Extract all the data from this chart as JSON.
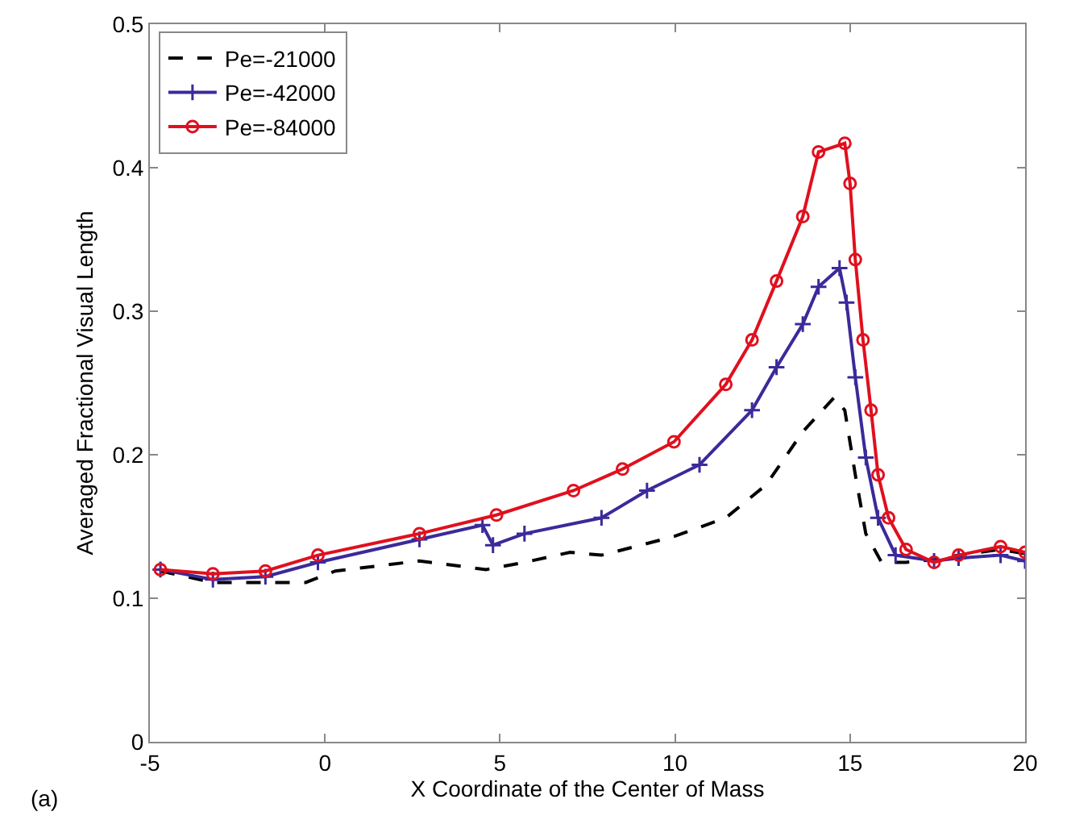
{
  "chart_data": {
    "type": "line",
    "xlabel": "X Coordinate of the Center of Mass",
    "ylabel": "Averaged Fractional Visual Length",
    "annotations": [
      "(a)"
    ],
    "xlim": [
      -5,
      20
    ],
    "xticks": [
      -5,
      0,
      5,
      10,
      15,
      20
    ],
    "ylim": [
      0,
      0.5
    ],
    "yticks": [
      0,
      0.1,
      0.2,
      0.3,
      0.4,
      0.5
    ],
    "grid": false,
    "legend": "top left",
    "series": [
      {
        "name": "Pe=-21000",
        "color": "#000000",
        "line_style": "dashed",
        "marker": "none",
        "x": [
          -4.7,
          -3.2,
          -0.55,
          0.3,
          2.7,
          4.6,
          5.7,
          7.0,
          7.9,
          9.97,
          11.45,
          12.6,
          13.65,
          14.55,
          14.85,
          15.15,
          15.45,
          15.9,
          16.6,
          17.4,
          18.1,
          19.3,
          20
        ],
        "values": [
          0.119,
          0.111,
          0.111,
          0.119,
          0.126,
          0.12,
          0.125,
          0.132,
          0.13,
          0.143,
          0.156,
          0.179,
          0.216,
          0.24,
          0.231,
          0.186,
          0.145,
          0.125,
          0.125,
          0.127,
          0.13,
          0.134,
          0.131
        ]
      },
      {
        "name": "Pe=-42000",
        "color": "#3a2a9a",
        "line_style": "solid",
        "marker": "cross",
        "x": [
          -4.7,
          -3.2,
          -1.7,
          -0.2,
          2.7,
          4.5,
          4.8,
          5.7,
          7.9,
          9.2,
          10.7,
          12.2,
          12.9,
          13.65,
          14.1,
          14.7,
          14.9,
          15.15,
          15.45,
          15.8,
          16.3,
          17.4,
          18.1,
          19.3,
          20
        ],
        "values": [
          0.12,
          0.113,
          0.115,
          0.125,
          0.141,
          0.151,
          0.137,
          0.145,
          0.156,
          0.175,
          0.193,
          0.231,
          0.261,
          0.291,
          0.317,
          0.33,
          0.306,
          0.254,
          0.198,
          0.156,
          0.13,
          0.126,
          0.128,
          0.13,
          0.126
        ]
      },
      {
        "name": "Pe=-84000",
        "color": "#e0101e",
        "line_style": "solid",
        "marker": "circle",
        "x": [
          -4.7,
          -3.2,
          -1.7,
          -0.2,
          2.7,
          4.9,
          7.1,
          8.5,
          9.97,
          11.45,
          12.2,
          12.9,
          13.65,
          14.1,
          14.85,
          15.0,
          15.15,
          15.37,
          15.6,
          15.8,
          16.1,
          16.6,
          17.4,
          18.1,
          19.3,
          20
        ],
        "values": [
          0.12,
          0.117,
          0.119,
          0.13,
          0.145,
          0.158,
          0.175,
          0.19,
          0.209,
          0.249,
          0.28,
          0.321,
          0.366,
          0.411,
          0.417,
          0.389,
          0.336,
          0.28,
          0.231,
          0.186,
          0.156,
          0.134,
          0.125,
          0.13,
          0.136,
          0.132
        ]
      }
    ]
  }
}
